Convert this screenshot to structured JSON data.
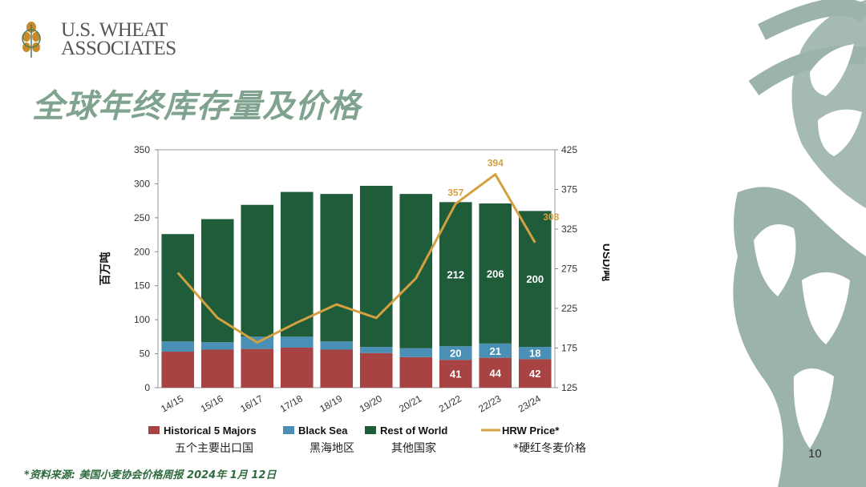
{
  "logo": {
    "line1": "U.S. WHEAT",
    "line2": "ASSOCIATES"
  },
  "title": "全球年终库存量及价格",
  "source": "*资料来源: 美国小麦协会价格周报 2024年 1月 12日",
  "page_number": "10",
  "colors": {
    "historical": "#a84343",
    "black_sea": "#4a8fb5",
    "rest_of_world": "#1f5c3a",
    "hrw_price": "#d4a040",
    "title": "#7fa38f",
    "deco": "#9bb3a8"
  },
  "chart_data": {
    "type": "bar",
    "categories": [
      "14/15",
      "15/16",
      "16/17",
      "17/18",
      "18/19",
      "19/20",
      "20/21",
      "21/22",
      "22/23",
      "23/24"
    ],
    "series": [
      {
        "name": "Historical 5 Majors",
        "values": [
          53,
          56,
          57,
          59,
          56,
          51,
          45,
          41,
          44,
          42
        ]
      },
      {
        "name": "Black Sea",
        "values": [
          15,
          11,
          18,
          16,
          12,
          9,
          13,
          20,
          21,
          18
        ]
      },
      {
        "name": "Rest of World",
        "values": [
          158,
          181,
          194,
          213,
          217,
          237,
          227,
          212,
          206,
          200
        ]
      },
      {
        "name": "HRW Price*",
        "axis": "right",
        "values": [
          270,
          213,
          182,
          207,
          230,
          213,
          263,
          357,
          394,
          308
        ]
      }
    ],
    "data_labels": {
      "Historical 5 Majors": [
        null,
        null,
        null,
        null,
        null,
        null,
        null,
        "41",
        "44",
        "42"
      ],
      "Black Sea": [
        null,
        null,
        null,
        null,
        null,
        null,
        null,
        "20",
        "21",
        "18"
      ],
      "Rest of World": [
        null,
        null,
        null,
        null,
        null,
        null,
        null,
        "212",
        "206",
        "200"
      ],
      "HRW Price*": [
        null,
        null,
        null,
        null,
        null,
        null,
        null,
        "357",
        "394",
        "308"
      ]
    },
    "ylabel": "百万吨",
    "y2label": "USD/吨",
    "ylim": [
      0,
      350
    ],
    "y2lim": [
      125,
      425
    ],
    "yticks": [
      "0",
      "50",
      "100",
      "150",
      "200",
      "250",
      "300",
      "350"
    ],
    "y2ticks": [
      "125",
      "175",
      "225",
      "275",
      "325",
      "375",
      "425"
    ],
    "legend": [
      {
        "label": "Historical 5 Majors",
        "sub": "五个主要出口国"
      },
      {
        "label": "Black Sea",
        "sub": "黑海地区"
      },
      {
        "label": "Rest of World",
        "sub": "其他国家"
      },
      {
        "label": "HRW Price*",
        "sub": "*硬红冬麦价格"
      }
    ],
    "legend_position": "bottom"
  }
}
